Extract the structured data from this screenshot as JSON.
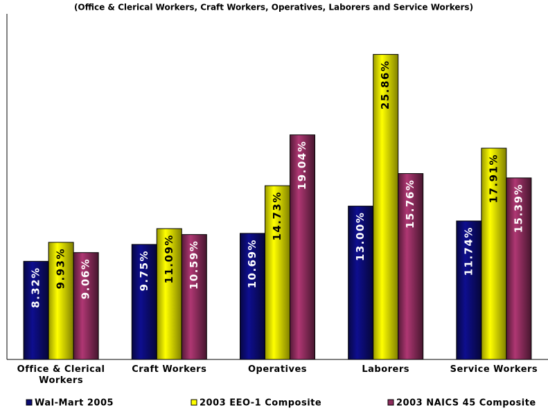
{
  "chart_data": {
    "type": "bar",
    "subtitle": "(Office & Clerical Workers, Craft Workers, Operatives, Laborers and Service Workers)",
    "categories": [
      "Office & Clerical Workers",
      "Craft Workers",
      "Operatives",
      "Laborers",
      "Service Workers"
    ],
    "series": [
      {
        "name": "Wal-Mart 2005",
        "color": "#0b0b72",
        "values": [
          8.32,
          9.75,
          10.69,
          13.0,
          11.74
        ],
        "value_labels": [
          "8.32%",
          "9.75%",
          "10.69%",
          "13.00%",
          "11.74%"
        ]
      },
      {
        "name": "2003 EEO-1 Composite",
        "color": "#ffff00",
        "values": [
          9.93,
          11.09,
          14.73,
          25.86,
          17.91
        ],
        "value_labels": [
          "9.93%",
          "11.09%",
          "14.73%",
          "25.86%",
          "17.91%"
        ]
      },
      {
        "name": "2003 NAICS 45 Composite",
        "color": "#8c2c5c",
        "values": [
          9.06,
          10.59,
          19.04,
          15.76,
          15.39
        ],
        "value_labels": [
          "9.06%",
          "10.59%",
          "19.04%",
          "15.76%",
          "15.39%"
        ]
      }
    ],
    "ylim": [
      0,
      29.3
    ]
  }
}
